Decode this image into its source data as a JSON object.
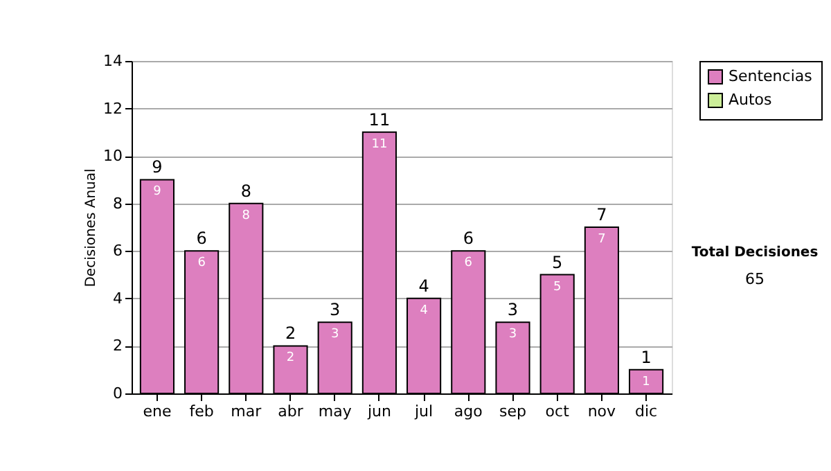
{
  "chart_data": {
    "type": "bar",
    "stacked": true,
    "ylabel": "Decisiones Anual",
    "categories": [
      "ene",
      "feb",
      "mar",
      "abr",
      "may",
      "jun",
      "jul",
      "ago",
      "sep",
      "oct",
      "nov",
      "dic"
    ],
    "series": [
      {
        "name": "Sentencias",
        "color": "#dd7fbf",
        "values": [
          9,
          6,
          8,
          2,
          3,
          11,
          4,
          6,
          3,
          5,
          7,
          1
        ],
        "value_labels": [
          "9",
          "6",
          "8",
          "2",
          "3",
          "11",
          "4",
          "6",
          "3",
          "5",
          "7",
          "1"
        ]
      },
      {
        "name": "Autos",
        "color": "#ccee99",
        "values": [
          null,
          null,
          null,
          null,
          null,
          null,
          null,
          null,
          null,
          null,
          null,
          null
        ]
      }
    ],
    "totals": [
      "9",
      "6",
      "8",
      "2",
      "3",
      "11",
      "4",
      "6",
      "3",
      "5",
      "7",
      "1"
    ],
    "ylim": [
      0,
      14
    ],
    "yticks": [
      0,
      2,
      4,
      6,
      8,
      10,
      12,
      14
    ],
    "grid": "y",
    "legend": "right",
    "annotations": [
      "Total Decisiones",
      "65"
    ]
  }
}
